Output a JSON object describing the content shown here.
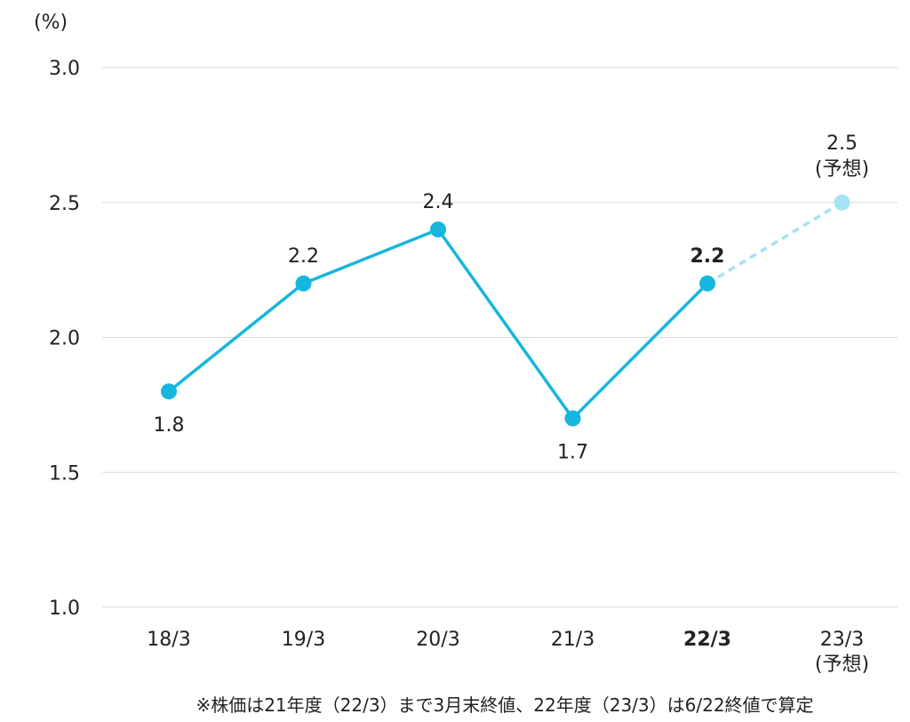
{
  "chart_data": {
    "type": "line",
    "unit_label": "(%)",
    "categories": [
      "18/3",
      "19/3",
      "20/3",
      "21/3",
      "22/3",
      "23/3"
    ],
    "category_notes": [
      "",
      "",
      "",
      "",
      "",
      "(予想)"
    ],
    "highlight_category": "22/3",
    "values": [
      1.8,
      2.2,
      2.4,
      1.7,
      2.2,
      2.5
    ],
    "value_labels": [
      "1.8",
      "2.2",
      "2.4",
      "1.7",
      "2.2",
      "2.5"
    ],
    "forecast_index": 5,
    "forecast_note": "(予想)",
    "ylim": [
      1.0,
      3.0
    ],
    "yticks": [
      "1.0",
      "1.5",
      "2.0",
      "2.5",
      "3.0"
    ],
    "grid": true,
    "colors": {
      "line": "#16b6de",
      "forecast": "#a6e3f2",
      "grid": "#dddddd"
    },
    "footnote": "※株価は21年度（22/3）まで3月末終値、22年度（23/3）は6/22終値で算定"
  }
}
